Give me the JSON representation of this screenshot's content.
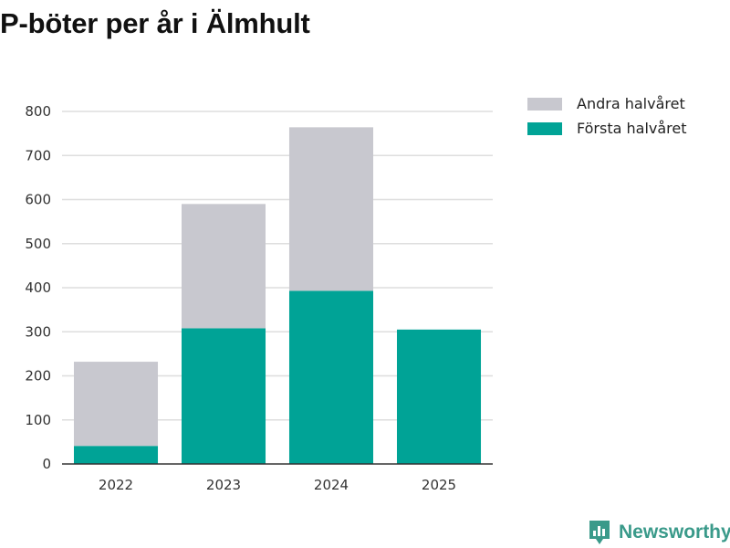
{
  "title": "P-böter per år i Älmhult",
  "legend": [
    {
      "label": "Andra halvåret",
      "color": "#c8c8cf"
    },
    {
      "label": "Första halvåret",
      "color": "#00a396"
    }
  ],
  "brand": {
    "name": "Newsworthy",
    "color": "#3a9a8a",
    "icon": "newsworthy-logo-icon"
  },
  "chart_data": {
    "type": "bar",
    "stacked": true,
    "title": "P-böter per år i Älmhult",
    "categories": [
      "2022",
      "2023",
      "2024",
      "2025"
    ],
    "series": [
      {
        "name": "Första halvåret",
        "color": "#00a396",
        "values": [
          41,
          308,
          393,
          305
        ]
      },
      {
        "name": "Andra halvåret",
        "color": "#c8c8cf",
        "values": [
          191,
          282,
          371,
          0
        ]
      }
    ],
    "xlabel": "",
    "ylabel": "",
    "ylim": [
      0,
      800
    ],
    "yticks": [
      0,
      100,
      200,
      300,
      400,
      500,
      600,
      700,
      800
    ],
    "grid": true,
    "legend_position": "top-right"
  }
}
